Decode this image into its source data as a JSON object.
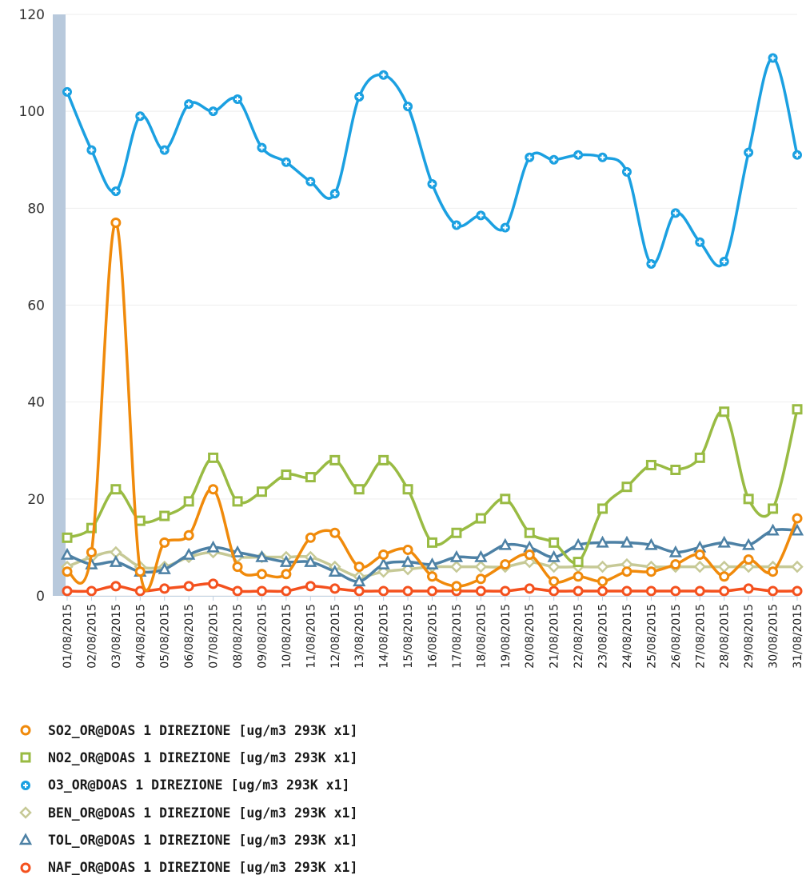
{
  "chart_data": {
    "type": "line",
    "categories": [
      "01/08/2015",
      "02/08/2015",
      "03/08/2015",
      "04/08/2015",
      "05/08/2015",
      "06/08/2015",
      "07/08/2015",
      "08/08/2015",
      "09/08/2015",
      "10/08/2015",
      "11/08/2015",
      "12/08/2015",
      "13/08/2015",
      "14/08/2015",
      "15/08/2015",
      "16/08/2015",
      "17/08/2015",
      "18/08/2015",
      "19/08/2015",
      "20/08/2015",
      "21/08/2015",
      "22/08/2015",
      "23/08/2015",
      "24/08/2015",
      "25/08/2015",
      "26/08/2015",
      "27/08/2015",
      "28/08/2015",
      "29/08/2015",
      "30/08/2015",
      "31/08/2015"
    ],
    "ylim": [
      0,
      120
    ],
    "yticks": [
      0,
      20,
      40,
      60,
      80,
      100,
      120
    ],
    "grid": true,
    "legend_position": "bottom",
    "series": [
      {
        "name": "SO2_OR@DOAS 1 DIREZIONE [ug/m3 293K x1]",
        "color": "#f08a0b",
        "marker": "circle",
        "values": [
          5,
          9,
          77,
          5,
          11,
          12.5,
          22,
          6,
          4.5,
          4.5,
          12,
          13,
          6,
          8.5,
          9.5,
          4,
          2,
          3.5,
          6.5,
          8.5,
          3,
          4,
          3,
          5,
          5,
          6.5,
          8.5,
          4,
          7.5,
          5,
          16
        ]
      },
      {
        "name": "NO2_OR@DOAS 1 DIREZIONE [ug/m3 293K x1]",
        "color": "#99bb43",
        "marker": "square",
        "values": [
          12,
          14,
          22,
          15.5,
          16.5,
          19.5,
          28.5,
          19.5,
          21.5,
          25,
          24.5,
          28,
          22,
          28,
          22,
          11,
          13,
          16,
          20,
          13,
          11,
          7,
          18,
          22.5,
          27,
          26,
          28.5,
          38,
          20,
          18,
          38.5
        ]
      },
      {
        "name": "O3_OR@DOAS 1 DIREZIONE [ug/m3 293K x1]",
        "color": "#1ba0e1",
        "marker": "cross",
        "values": [
          104,
          92,
          83.5,
          99,
          92,
          101.5,
          100,
          102.5,
          92.5,
          89.5,
          85.5,
          83,
          103,
          107.5,
          101,
          85,
          76.5,
          78.5,
          76,
          90.5,
          90,
          91,
          90.5,
          87.5,
          68.5,
          79,
          73,
          69,
          91.5,
          111,
          91
        ]
      },
      {
        "name": "BEN_OR@DOAS 1 DIREZIONE [ug/m3 293K x1]",
        "color": "#c6c996",
        "marker": "diamond",
        "values": [
          6,
          8,
          9,
          6,
          6,
          8,
          9,
          8,
          8,
          8,
          8,
          6,
          4,
          5,
          5.5,
          6,
          6,
          6,
          6,
          7,
          6,
          6,
          6,
          6.5,
          6,
          6,
          6,
          6,
          6,
          6,
          6
        ]
      },
      {
        "name": "TOL_OR@DOAS 1 DIREZIONE [ug/m3 293K x1]",
        "color": "#4d81a5",
        "marker": "triangle",
        "values": [
          8.5,
          6.5,
          7,
          5,
          5.5,
          8.5,
          10,
          9,
          8,
          7,
          7,
          5,
          3,
          6.5,
          7,
          6.5,
          8,
          8,
          10.5,
          10,
          8,
          10.5,
          11,
          11,
          10.5,
          9,
          10,
          11,
          10.5,
          13.5,
          13.5
        ]
      },
      {
        "name": "NAF_OR@DOAS 1 DIREZIONE [ug/m3 293K x1]",
        "color": "#f4511e",
        "marker": "circle",
        "values": [
          1,
          1,
          2,
          1,
          1.5,
          2,
          2.5,
          1,
          1,
          1,
          2,
          1.5,
          1,
          1,
          1,
          1,
          1,
          1,
          1,
          1.5,
          1,
          1,
          1,
          1,
          1,
          1,
          1,
          1,
          1.5,
          1,
          1
        ]
      }
    ]
  }
}
